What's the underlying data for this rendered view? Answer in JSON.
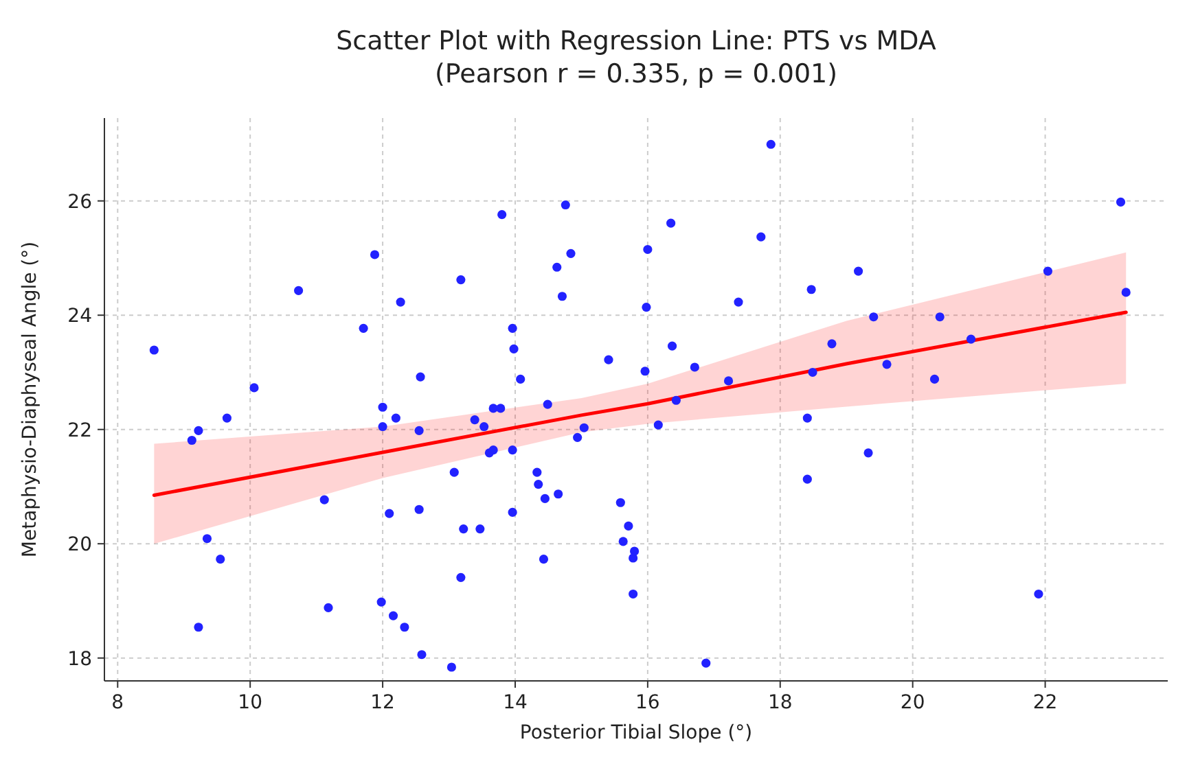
{
  "chart_data": {
    "type": "scatter",
    "title": "Scatter Plot with Regression Line: PTS vs MDA",
    "subtitle": "(Pearson r = 0.335, p = 0.001)",
    "xlabel": "Posterior Tibial Slope (°)",
    "ylabel": "Metaphysio-Diaphyseal Angle (°)",
    "xlim": [
      7.8,
      23.85
    ],
    "ylim": [
      17.6,
      27.45
    ],
    "xticks": [
      8,
      10,
      12,
      14,
      16,
      18,
      20,
      22
    ],
    "yticks": [
      18,
      20,
      22,
      24,
      26
    ],
    "grid": true,
    "series": [
      {
        "marker": "circle",
        "color": "#2222ff",
        "x": [
          8.55,
          9.12,
          9.22,
          9.35,
          9.55,
          9.22,
          9.65,
          10.06,
          10.73,
          11.12,
          11.18,
          11.71,
          11.88,
          12.0,
          12.0,
          11.98,
          12.1,
          12.2,
          12.27,
          12.16,
          12.33,
          12.57,
          12.55,
          12.55,
          12.59,
          13.04,
          13.08,
          13.18,
          13.18,
          13.22,
          13.39,
          13.47,
          13.53,
          13.61,
          13.67,
          13.8,
          13.67,
          13.78,
          13.96,
          13.98,
          13.96,
          13.96,
          14.08,
          14.33,
          14.35,
          14.45,
          14.49,
          14.43,
          14.63,
          14.65,
          14.71,
          14.76,
          14.84,
          14.94,
          15.04,
          15.41,
          15.59,
          15.63,
          15.71,
          15.78,
          15.8,
          15.78,
          15.96,
          15.98,
          16.0,
          16.16,
          16.35,
          16.37,
          16.43,
          16.71,
          16.88,
          17.22,
          17.37,
          17.71,
          17.86,
          18.47,
          18.49,
          18.41,
          18.41,
          18.78,
          19.18,
          19.33,
          19.41,
          19.61,
          20.33,
          20.41,
          20.88,
          21.9,
          22.04,
          23.14,
          23.22
        ],
        "values": [
          23.39,
          21.81,
          21.98,
          20.09,
          19.73,
          18.54,
          22.2,
          22.73,
          24.43,
          20.77,
          18.88,
          23.77,
          25.06,
          22.39,
          22.05,
          18.98,
          20.53,
          22.2,
          24.23,
          18.74,
          18.54,
          22.92,
          21.98,
          20.6,
          18.06,
          17.84,
          21.25,
          24.62,
          19.41,
          20.26,
          22.17,
          20.26,
          22.05,
          21.59,
          21.64,
          25.76,
          22.37,
          22.37,
          23.77,
          23.41,
          21.64,
          20.55,
          22.88,
          21.25,
          21.04,
          20.79,
          22.44,
          19.73,
          24.84,
          20.87,
          24.33,
          25.93,
          25.08,
          21.86,
          22.03,
          23.22,
          20.72,
          20.04,
          20.31,
          19.75,
          19.87,
          19.12,
          23.02,
          24.14,
          25.15,
          22.08,
          25.61,
          23.46,
          22.51,
          23.09,
          17.91,
          22.85,
          24.23,
          25.37,
          26.99,
          24.45,
          23.0,
          22.2,
          21.13,
          23.5,
          24.77,
          21.59,
          23.97,
          23.14,
          22.88,
          23.97,
          23.58,
          19.12,
          24.77,
          25.98,
          24.4
        ]
      },
      {
        "type": "line",
        "color": "#ff0000",
        "x": [
          8.55,
          12,
          15,
          16,
          19,
          23.22
        ],
        "values": [
          20.85,
          21.6,
          22.25,
          22.45,
          23.15,
          24.05
        ],
        "lower": [
          20.0,
          21.15,
          21.95,
          22.1,
          22.4,
          22.8
        ],
        "upper": [
          21.75,
          22.05,
          22.55,
          22.8,
          23.9,
          25.1
        ]
      }
    ]
  }
}
